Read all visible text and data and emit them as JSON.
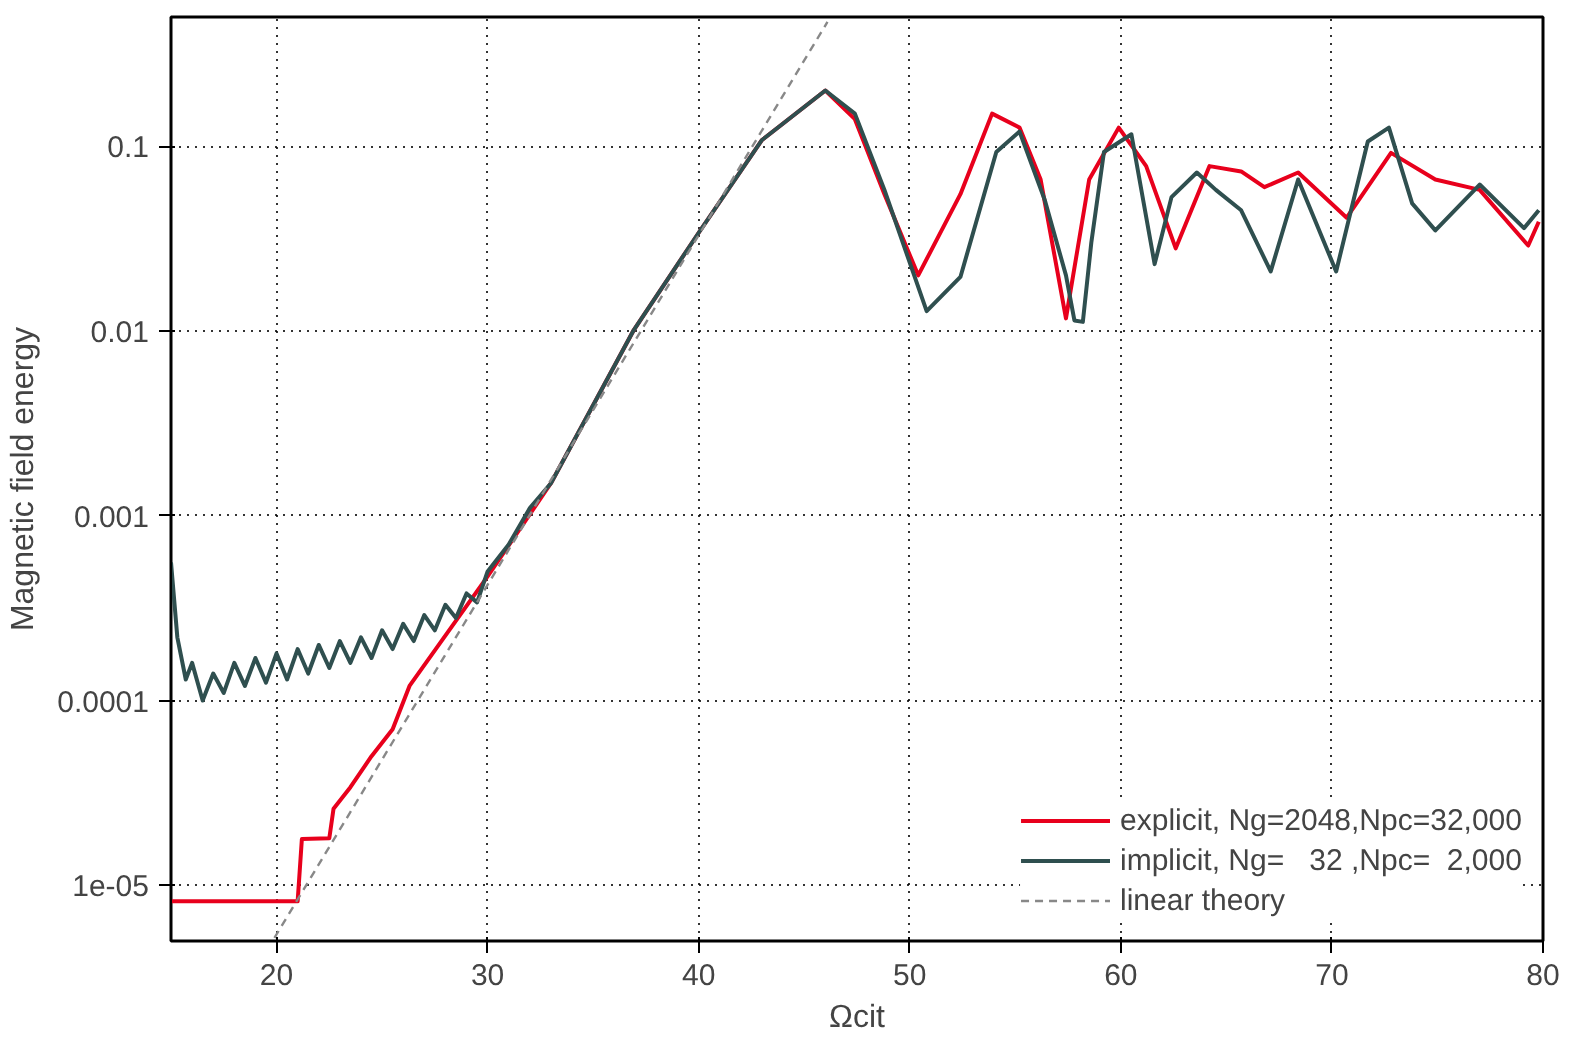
{
  "chart_data": {
    "type": "line",
    "xlabel": "Ωcit",
    "ylabel": "Magnetic field energy",
    "log": "y",
    "xlim": [
      15,
      80
    ],
    "ylim": [
      5e-06,
      0.5
    ],
    "xticks": [
      20,
      30,
      40,
      50,
      60,
      70,
      80
    ],
    "yticks": [
      {
        "value": 1e-05,
        "label": "1e-05"
      },
      0.0001,
      0.001,
      0.01,
      0.1
    ],
    "grid": true,
    "legend": "bottom right",
    "line_style": "solid",
    "marker": "none",
    "series": [
      {
        "name": "explicit, Ng=2048,Npc=32,000",
        "color": "#e8001c",
        "x": [
          15,
          21,
          21.2,
          22.5,
          22.7,
          23.5,
          24.5,
          25.5,
          26.3,
          30,
          33,
          36.9,
          40,
          43,
          46,
          47.4,
          48.8,
          50.4,
          52.4,
          53.9,
          55.2,
          56.2,
          57.4,
          58.5,
          59.9,
          61.2,
          62.6,
          64.2,
          65.7,
          66.8,
          68.4,
          70.7,
          72.8,
          74.9,
          77.0,
          79.3,
          79.8
        ],
        "values": [
          8.2e-06,
          8.2e-06,
          1.78e-05,
          1.8e-05,
          2.6e-05,
          3.4e-05,
          5e-05,
          7e-05,
          0.00012,
          0.00047,
          0.0015,
          0.01,
          0.034,
          0.108,
          0.2,
          0.14,
          0.055,
          0.02,
          0.055,
          0.15,
          0.126,
          0.066,
          0.0117,
          0.066,
          0.126,
          0.078,
          0.028,
          0.078,
          0.073,
          0.06,
          0.072,
          0.041,
          0.092,
          0.066,
          0.058,
          0.029,
          0.039
        ]
      },
      {
        "name": "implicit, Ng=   32 ,Npc=  2,000",
        "color": "#2f4f4f",
        "x": [
          15,
          15.3,
          15.7,
          16,
          16.5,
          17,
          17.5,
          18,
          18.5,
          19,
          19.5,
          20,
          20.5,
          21,
          21.5,
          22,
          22.5,
          23,
          23.5,
          24,
          24.5,
          25,
          25.5,
          26,
          26.5,
          27,
          27.5,
          28,
          28.5,
          29,
          29.5,
          30,
          31,
          32,
          33,
          36.9,
          40,
          43,
          46,
          47.4,
          48.8,
          50.8,
          52.4,
          54.1,
          55.2,
          56.4,
          57.4,
          57.8,
          58.2,
          58.6,
          59.2,
          60.5,
          61.6,
          62.4,
          63.6,
          64.5,
          65.7,
          67.1,
          68.4,
          70.2,
          71.7,
          72.7,
          73.8,
          74.9,
          77.0,
          79.1,
          79.8
        ],
        "values": [
          0.00056,
          0.00022,
          0.00013,
          0.00016,
          0.0001,
          0.00014,
          0.00011,
          0.00016,
          0.00012,
          0.00017,
          0.000125,
          0.00018,
          0.00013,
          0.00019,
          0.00014,
          0.0002,
          0.00015,
          0.00021,
          0.00016,
          0.00022,
          0.00017,
          0.00024,
          0.00019,
          0.00026,
          0.00021,
          0.00029,
          0.00024,
          0.00033,
          0.00028,
          0.00038,
          0.00034,
          0.0005,
          0.0007,
          0.0011,
          0.0015,
          0.01,
          0.034,
          0.108,
          0.2,
          0.15,
          0.058,
          0.0128,
          0.0196,
          0.093,
          0.12,
          0.051,
          0.02,
          0.0114,
          0.0112,
          0.03,
          0.093,
          0.116,
          0.023,
          0.053,
          0.072,
          0.058,
          0.045,
          0.021,
          0.066,
          0.021,
          0.106,
          0.126,
          0.049,
          0.035,
          0.062,
          0.036,
          0.045
        ]
      },
      {
        "name": "linear theory",
        "color": "#888888",
        "line_style": "dashed",
        "x": [
          19.9,
          46.1
        ],
        "values": [
          5.2e-06,
          0.47
        ]
      }
    ]
  }
}
